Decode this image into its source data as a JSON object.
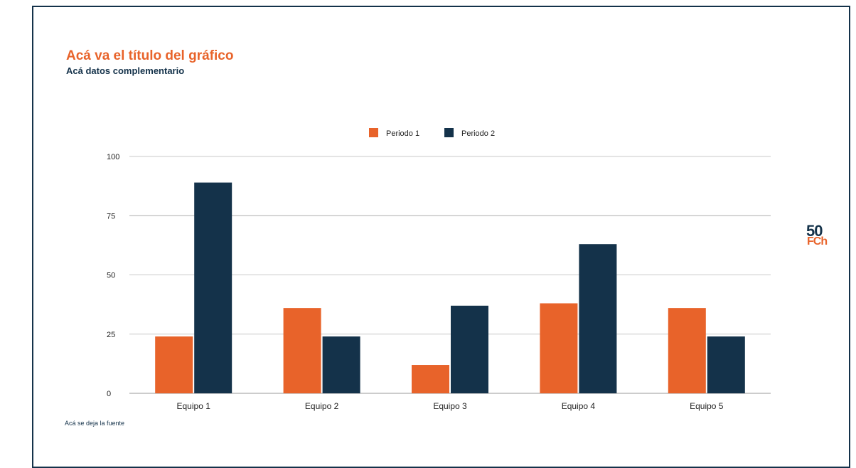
{
  "header": {
    "title": "Acá va el título del gráfico",
    "subtitle": "Acá datos complementario"
  },
  "footer": {
    "source": "Acá se deja la fuente"
  },
  "logo": {
    "number": "50",
    "abbr": "FCh"
  },
  "colors": {
    "series_1": "#e8632a",
    "series_2": "#14324a",
    "gridline": "#c8c8c8",
    "baseline": "#999999",
    "frame": "#14324a"
  },
  "chart_data": {
    "type": "bar",
    "categories": [
      "Equipo 1",
      "Equipo 2",
      "Equipo 3",
      "Equipo 4",
      "Equipo 5"
    ],
    "series": [
      {
        "name": "Periodo 1",
        "values": [
          24,
          36,
          12,
          38,
          36
        ]
      },
      {
        "name": "Periodo 2",
        "values": [
          89,
          24,
          37,
          63,
          24
        ]
      }
    ],
    "title": "Acá va el título del gráfico",
    "subtitle": "Acá datos complementario",
    "xlabel": "",
    "ylabel": "",
    "ylim": [
      0,
      100
    ],
    "yticks": [
      0,
      25,
      50,
      75,
      100
    ],
    "grid": true,
    "legend_position": "top-center"
  }
}
